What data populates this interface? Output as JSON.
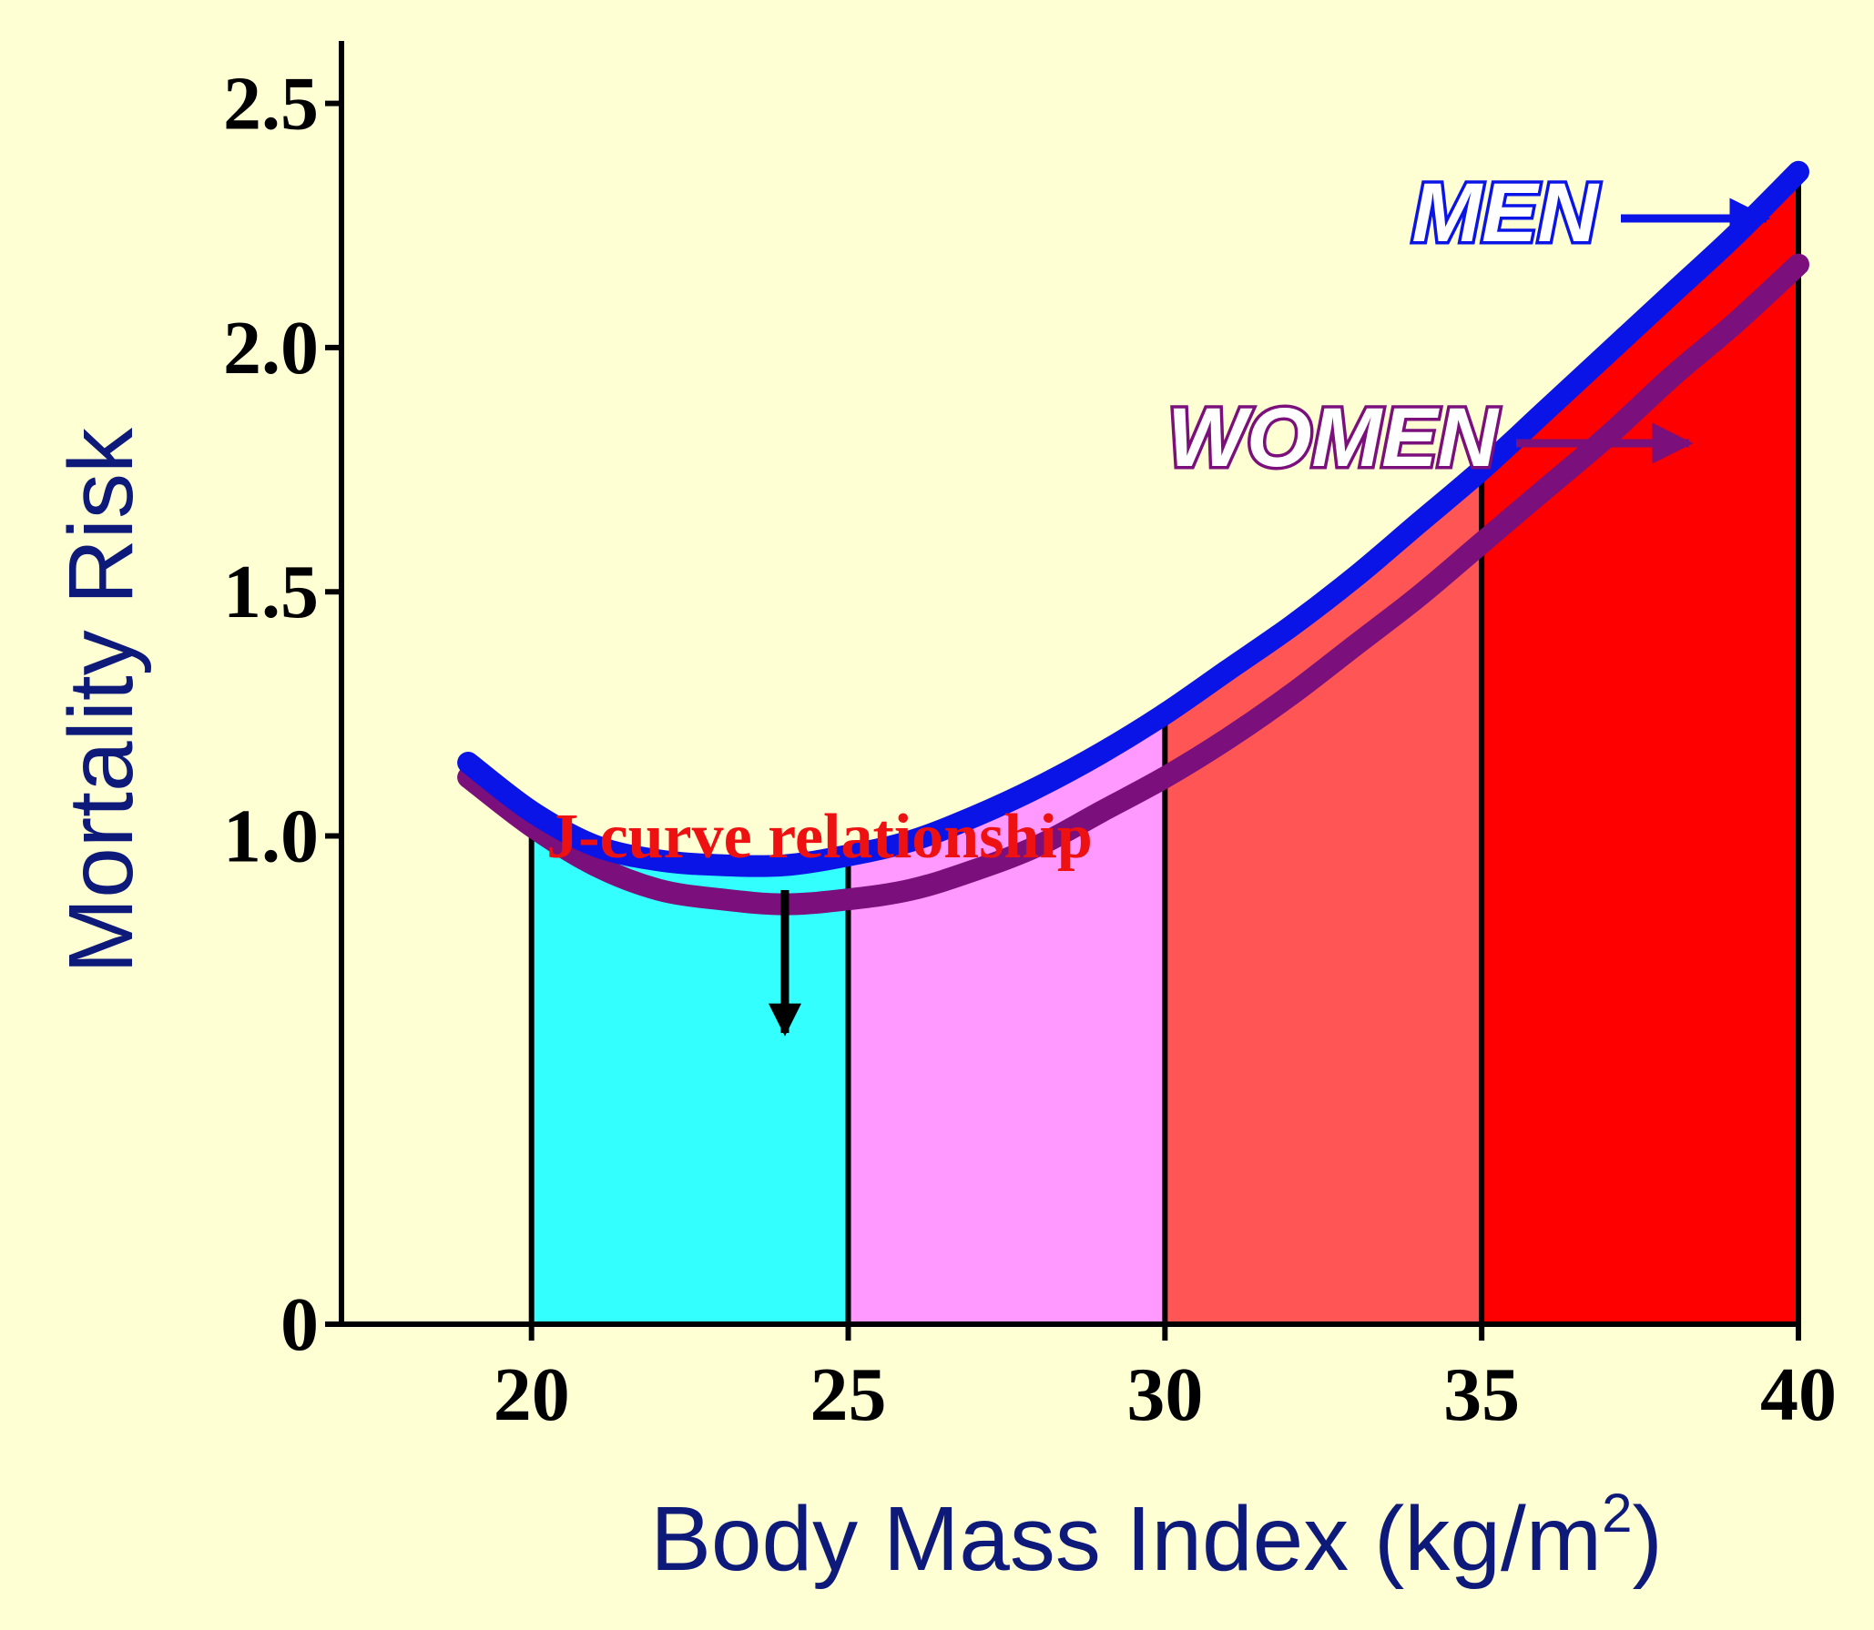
{
  "chart_data": {
    "type": "line",
    "xlabel": "Body Mass Index (kg/m",
    "xlabel_sup": "2",
    "xlabel_close": ")",
    "ylabel": "Mortality Risk",
    "xlim": [
      17,
      40
    ],
    "ylim": [
      0,
      2.6
    ],
    "x_ticks": [
      20,
      25,
      30,
      35,
      40
    ],
    "y_ticks": [
      {
        "value": 0,
        "label": "0"
      },
      {
        "value": 1.0,
        "label": "1.0"
      },
      {
        "value": 1.5,
        "label": "1.5"
      },
      {
        "value": 2.0,
        "label": "2.0"
      },
      {
        "value": 2.5,
        "label": "2.5"
      }
    ],
    "bands": [
      {
        "x0": 20,
        "x1": 25,
        "color": "#33FFFF"
      },
      {
        "x0": 25,
        "x1": 30,
        "color": "#FF99FF"
      },
      {
        "x0": 30,
        "x1": 35,
        "color": "#FF5555"
      },
      {
        "x0": 35,
        "x1": 40,
        "color": "#FF0000"
      }
    ],
    "series": [
      {
        "name": "MEN",
        "color": "#0A14E6",
        "x": [
          19,
          20,
          21,
          22,
          23,
          24,
          25,
          26,
          27,
          28,
          29,
          30,
          31,
          32,
          33,
          34,
          35,
          36,
          37,
          38,
          39,
          40
        ],
        "y": [
          1.15,
          1.05,
          0.98,
          0.95,
          0.94,
          0.94,
          0.96,
          0.99,
          1.04,
          1.1,
          1.17,
          1.25,
          1.34,
          1.43,
          1.53,
          1.64,
          1.75,
          1.87,
          1.99,
          2.11,
          2.23,
          2.36
        ]
      },
      {
        "name": "WOMEN",
        "color": "#7B0F7B",
        "x": [
          19,
          20,
          21,
          22,
          23,
          24,
          25,
          26,
          27,
          28,
          29,
          30,
          31,
          32,
          33,
          34,
          35,
          36,
          37,
          38,
          39,
          40
        ],
        "y": [
          1.12,
          1.02,
          0.94,
          0.89,
          0.87,
          0.86,
          0.87,
          0.89,
          0.93,
          0.98,
          1.05,
          1.12,
          1.2,
          1.29,
          1.39,
          1.49,
          1.6,
          1.71,
          1.82,
          1.94,
          2.05,
          2.17
        ]
      }
    ],
    "annotations": [
      {
        "text": "J-curve relationship",
        "target_x": 24,
        "target_y": 0.94
      }
    ],
    "legend_placement": "top-right, inline labels with arrows"
  }
}
